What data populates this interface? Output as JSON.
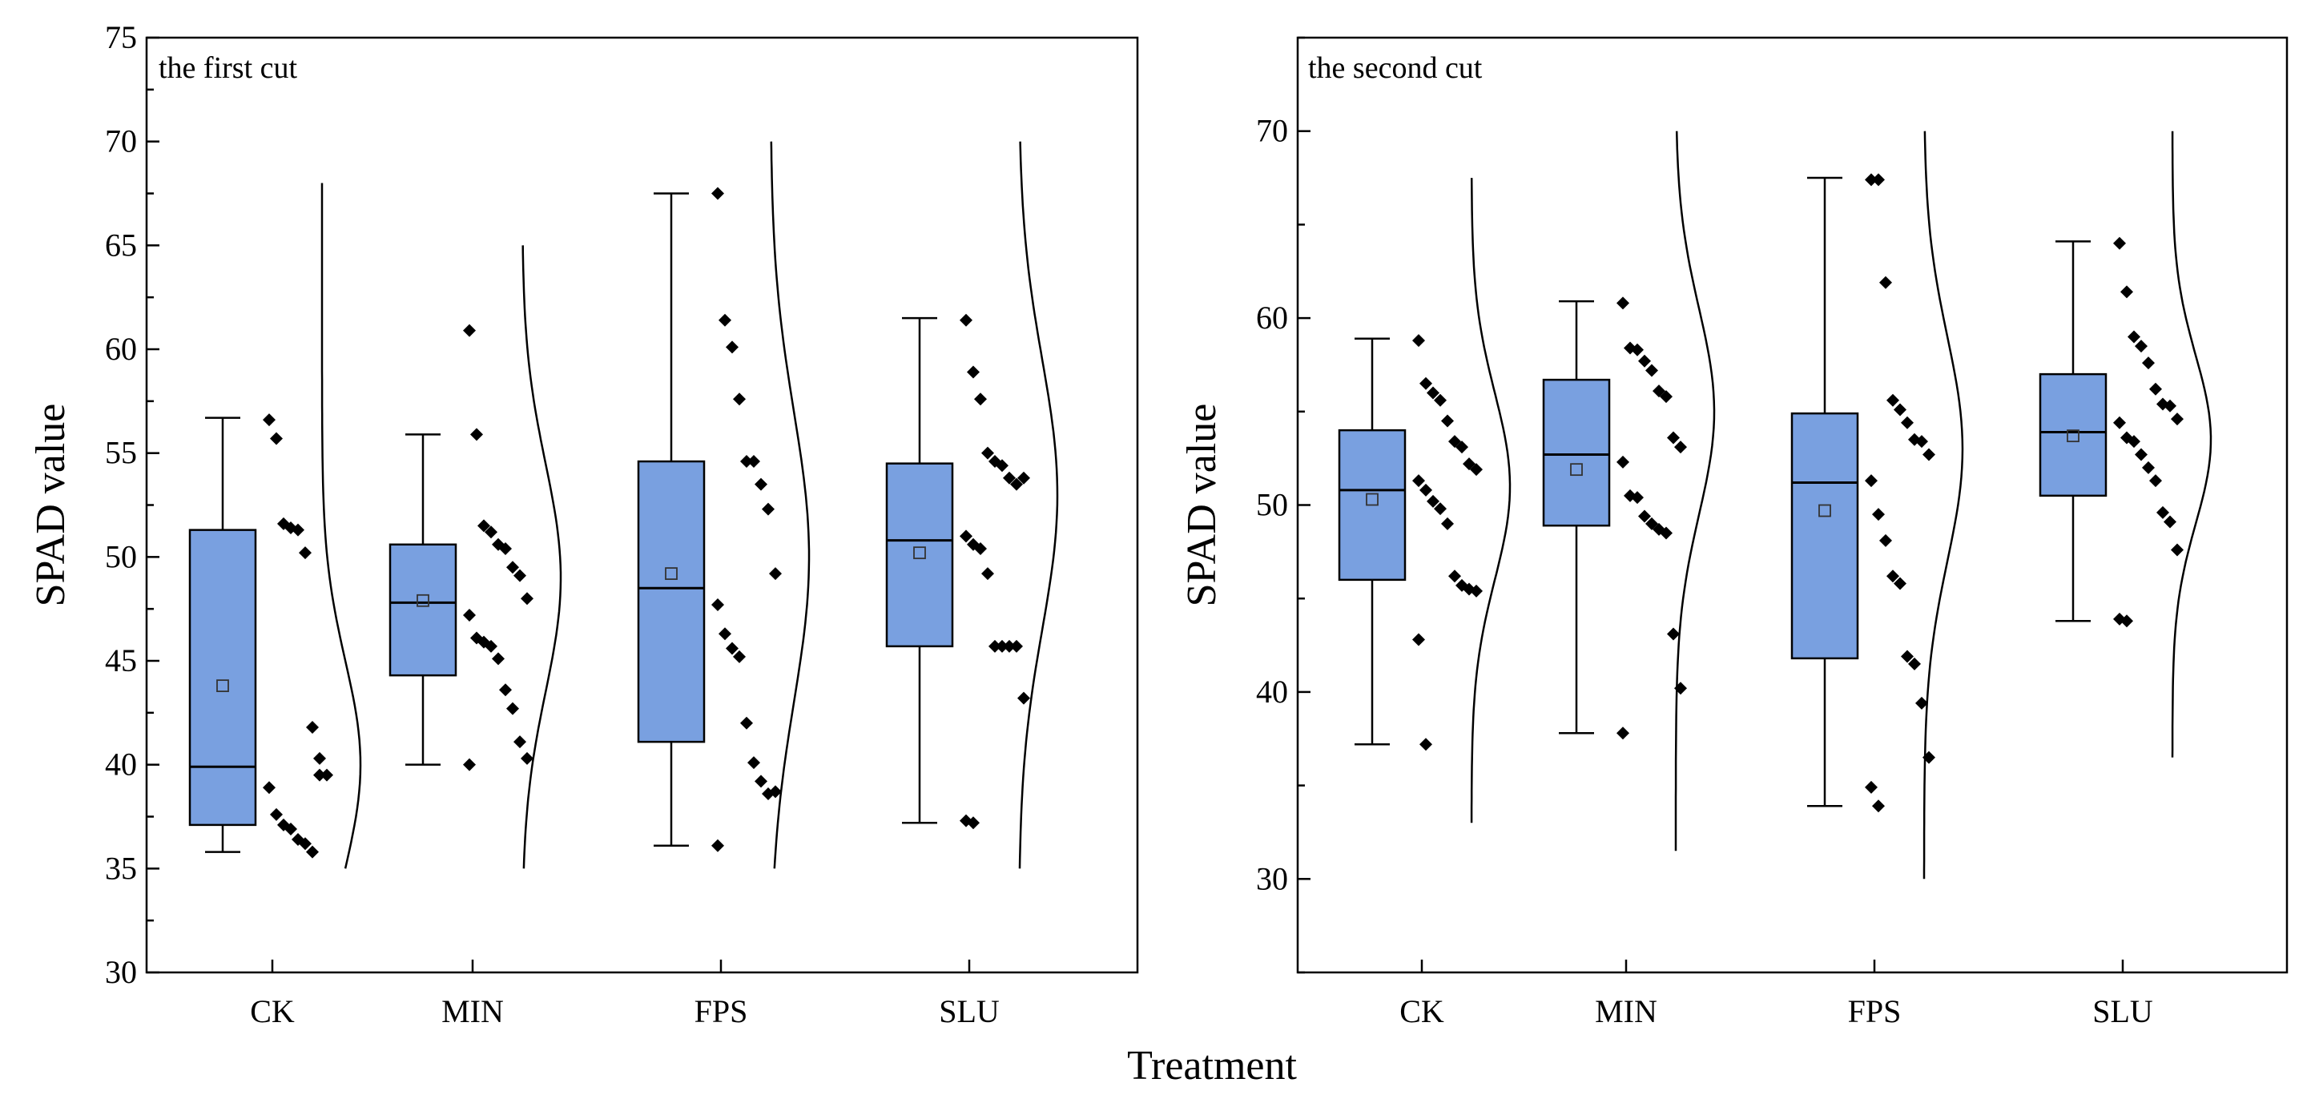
{
  "figure": {
    "xlabel": "Treatment"
  },
  "chart_data": [
    {
      "type": "box",
      "title": "the first cut",
      "ylabel": "SPAD value",
      "xlabel": "Treatment",
      "ylim": [
        30,
        75
      ],
      "yticks": [
        30,
        35,
        40,
        45,
        50,
        55,
        60,
        65,
        70,
        75
      ],
      "categories": [
        "CK",
        "MIN",
        "FPS",
        "SLU"
      ],
      "colors": {
        "box_fill": "#79a0e0",
        "box_stroke": "#000000"
      },
      "boxes": [
        {
          "category": "CK",
          "whisker_low": 35.8,
          "q1": 37.1,
          "median": 39.9,
          "q3": 51.3,
          "whisker_high": 56.7,
          "mean": 43.8,
          "points": [
            56.6,
            55.7,
            51.6,
            51.4,
            51.3,
            50.2,
            41.8,
            40.3,
            39.5,
            38.9,
            37.6,
            37.1,
            36.9,
            36.4,
            36.2,
            35.8,
            39.5
          ],
          "curve": {
            "low": 35,
            "high": 68,
            "center": 40,
            "spread": 5
          }
        },
        {
          "category": "MIN",
          "whisker_low": 40.0,
          "q1": 44.3,
          "median": 47.8,
          "q3": 50.6,
          "whisker_high": 55.9,
          "mean": 47.9,
          "points": [
            60.9,
            55.9,
            51.5,
            51.2,
            50.6,
            50.4,
            49.5,
            49.1,
            48.0,
            47.2,
            46.1,
            45.9,
            45.7,
            45.1,
            43.6,
            42.7,
            41.1,
            40.3,
            40.0
          ],
          "curve": {
            "low": 35,
            "high": 65,
            "center": 49,
            "spread": 5.5
          }
        },
        {
          "category": "FPS",
          "whisker_low": 36.1,
          "q1": 41.1,
          "median": 48.5,
          "q3": 54.6,
          "whisker_high": 67.5,
          "mean": 49.2,
          "points": [
            67.5,
            61.4,
            60.1,
            57.6,
            54.6,
            54.6,
            53.5,
            52.3,
            49.2,
            47.7,
            46.3,
            45.6,
            45.2,
            42.0,
            40.1,
            39.2,
            38.6,
            38.7,
            36.1
          ],
          "curve": {
            "low": 35,
            "high": 70,
            "center": 50,
            "spread": 7
          }
        },
        {
          "category": "SLU",
          "whisker_low": 37.2,
          "q1": 45.7,
          "median": 50.8,
          "q3": 54.5,
          "whisker_high": 61.5,
          "mean": 50.2,
          "points": [
            61.4,
            58.9,
            57.6,
            55.0,
            54.6,
            54.4,
            53.8,
            53.5,
            53.8,
            51.0,
            50.6,
            50.4,
            49.2,
            45.7,
            45.7,
            45.7,
            45.7,
            43.2,
            37.3,
            37.2
          ],
          "curve": {
            "low": 35,
            "high": 70,
            "center": 53,
            "spread": 6.5
          }
        }
      ]
    },
    {
      "type": "box",
      "title": "the second cut",
      "ylabel": "SPAD value",
      "xlabel": "Treatment",
      "ylim": [
        25,
        75
      ],
      "yticks": [
        30,
        40,
        50,
        60,
        70
      ],
      "categories": [
        "CK",
        "MIN",
        "FPS",
        "SLU"
      ],
      "colors": {
        "box_fill": "#79a0e0",
        "box_stroke": "#000000"
      },
      "boxes": [
        {
          "category": "CK",
          "whisker_low": 37.2,
          "q1": 46.0,
          "median": 50.8,
          "q3": 54.0,
          "whisker_high": 58.9,
          "mean": 50.3,
          "points": [
            58.8,
            56.5,
            56.0,
            55.6,
            54.5,
            53.4,
            53.1,
            52.2,
            51.9,
            51.3,
            50.8,
            50.2,
            49.8,
            49.0,
            46.2,
            45.7,
            45.5,
            45.4,
            42.8,
            37.2
          ],
          "curve": {
            "low": 33,
            "high": 67.5,
            "center": 51,
            "spread": 5
          }
        },
        {
          "category": "MIN",
          "whisker_low": 37.8,
          "q1": 48.9,
          "median": 52.7,
          "q3": 56.7,
          "whisker_high": 60.9,
          "mean": 51.9,
          "points": [
            60.8,
            58.4,
            58.3,
            57.7,
            57.2,
            56.1,
            55.8,
            53.6,
            53.1,
            52.3,
            50.5,
            50.4,
            49.4,
            49.0,
            48.7,
            48.5,
            43.1,
            40.2,
            37.8
          ],
          "curve": {
            "low": 31.5,
            "high": 70,
            "center": 55,
            "spread": 5.5
          }
        },
        {
          "category": "FPS",
          "whisker_low": 33.9,
          "q1": 41.8,
          "median": 51.2,
          "q3": 54.9,
          "whisker_high": 67.5,
          "mean": 49.7,
          "points": [
            67.4,
            67.4,
            61.9,
            55.6,
            55.1,
            54.4,
            53.5,
            53.4,
            52.7,
            51.3,
            49.5,
            48.1,
            46.2,
            45.8,
            41.9,
            41.5,
            39.4,
            36.5,
            34.9,
            33.9
          ],
          "curve": {
            "low": 30,
            "high": 70,
            "center": 53,
            "spread": 6
          }
        },
        {
          "category": "SLU",
          "whisker_low": 43.8,
          "q1": 50.5,
          "median": 53.9,
          "q3": 57.0,
          "whisker_high": 64.1,
          "mean": 53.7,
          "points": [
            64.0,
            61.4,
            59.0,
            58.5,
            57.6,
            56.2,
            55.4,
            55.3,
            54.6,
            54.4,
            53.6,
            53.4,
            52.7,
            52.0,
            51.3,
            49.6,
            49.1,
            47.6,
            43.9,
            43.8
          ],
          "curve": {
            "low": 36.5,
            "high": 70,
            "center": 53.5,
            "spread": 4.5
          }
        }
      ]
    }
  ]
}
